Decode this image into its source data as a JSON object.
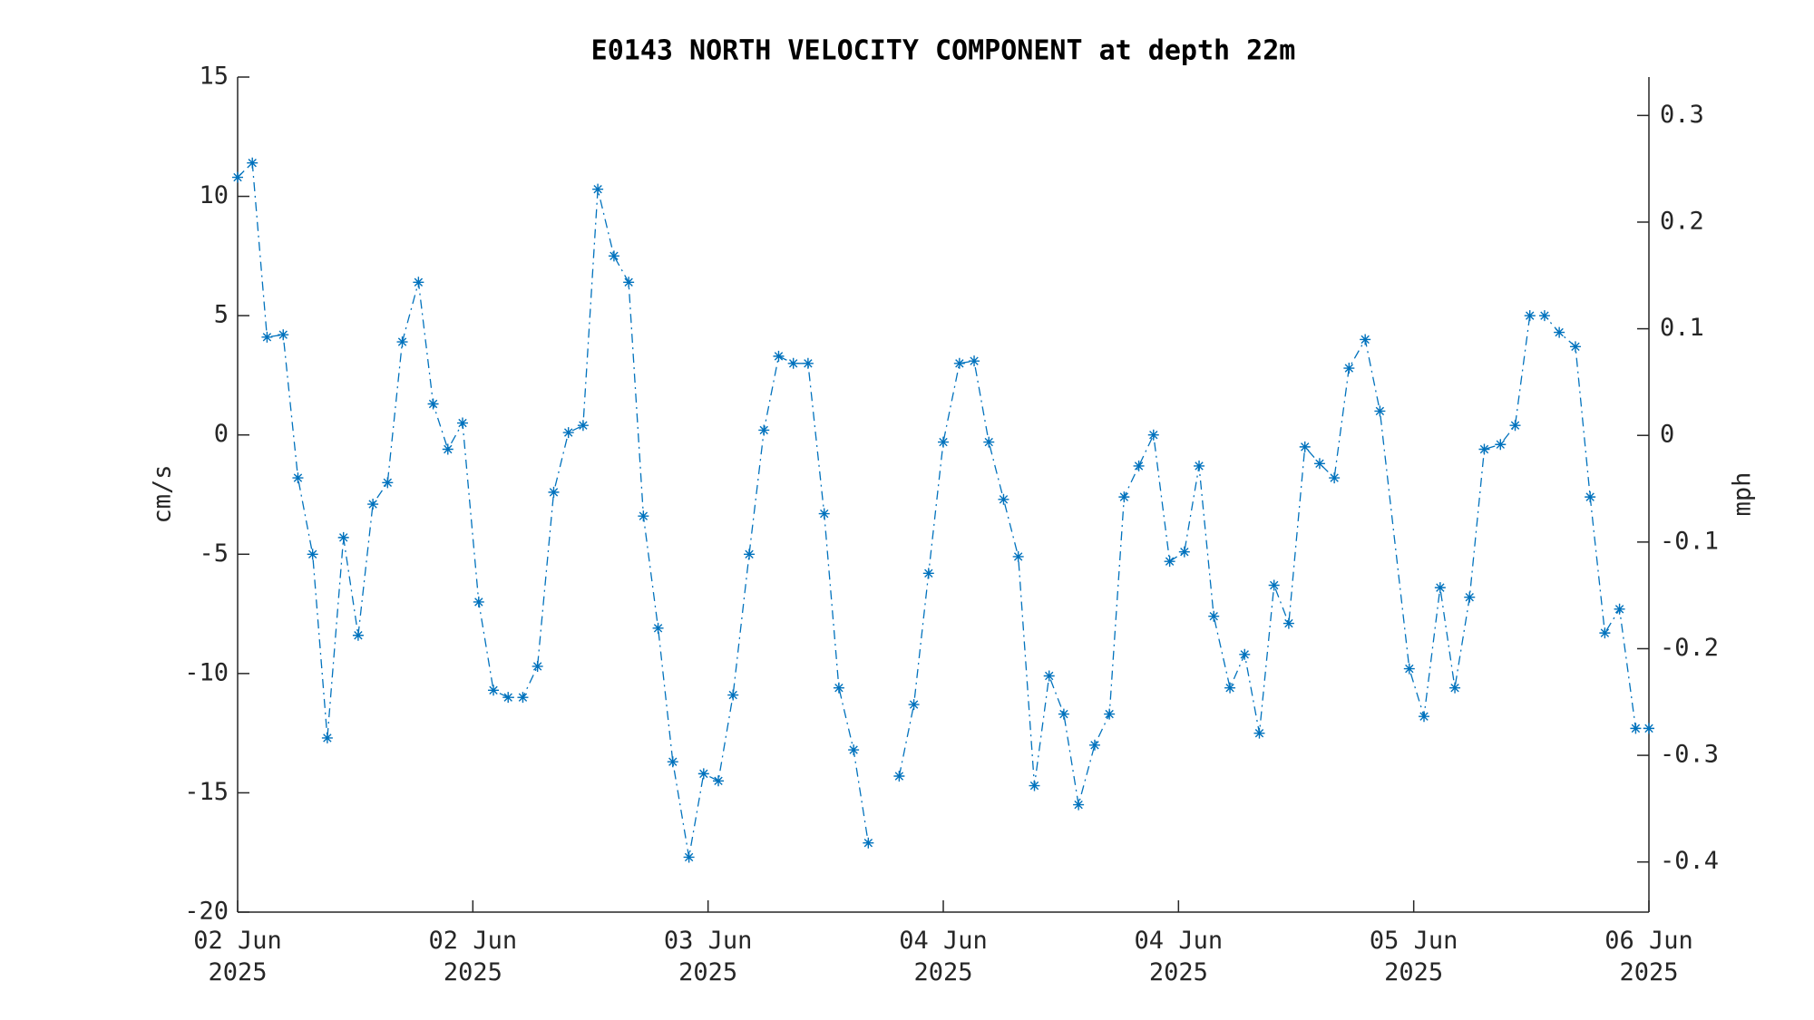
{
  "chart_data": {
    "type": "line",
    "title": "E0143 NORTH VELOCITY COMPONENT at depth 22m",
    "ylabel": "cm/s",
    "y2label": "mph",
    "x": [
      0,
      1.0,
      2.0,
      3.1,
      4.1,
      5.1,
      6.1,
      7.2,
      8.2,
      9.2,
      10.2,
      11.2,
      12.3,
      13.3,
      14.3,
      15.3,
      16.4,
      17.4,
      18.4,
      19.4,
      20.4,
      21.5,
      22.5,
      23.5,
      24.5,
      25.6,
      26.6,
      27.6,
      28.6,
      29.6,
      30.7,
      31.7,
      32.7,
      33.7,
      34.8,
      35.8,
      36.8,
      37.8,
      38.8,
      39.9,
      40.9,
      41.9,
      42.9,
      43.9,
      45.0,
      46.0,
      47.0,
      48.0,
      49.1,
      50.1,
      51.1,
      52.1,
      53.1,
      54.2,
      55.2,
      56.2,
      57.2,
      58.3,
      59.3,
      60.3,
      61.3,
      62.3,
      63.4,
      64.4,
      65.4,
      66.4,
      67.5,
      68.5,
      69.5,
      70.5,
      71.5,
      72.6,
      73.6,
      74.6,
      75.6,
      76.7,
      77.7,
      79.7,
      80.7,
      81.8,
      82.8,
      83.8,
      84.8,
      85.9,
      86.9,
      87.9,
      88.9,
      89.9,
      91.0,
      92.0,
      93.0,
      94.0,
      95.1,
      96.0
    ],
    "series": [
      {
        "name": "north velocity",
        "color": "#0072bd",
        "values": [
          10.8,
          11.4,
          4.1,
          4.2,
          -1.8,
          -5.0,
          -12.7,
          -4.3,
          -8.4,
          -2.9,
          -2.0,
          3.9,
          6.4,
          1.3,
          -0.6,
          0.5,
          -7.0,
          -10.7,
          -11.0,
          -11.0,
          -9.7,
          -2.4,
          0.1,
          0.4,
          10.3,
          7.5,
          6.4,
          -3.4,
          -8.1,
          -13.7,
          -17.7,
          -14.2,
          -14.5,
          -10.9,
          -5.0,
          0.2,
          3.3,
          3.0,
          3.0,
          -3.3,
          -10.6,
          -13.2,
          -17.1,
          null,
          -14.3,
          -11.3,
          -5.8,
          -0.3,
          3.0,
          3.1,
          -0.3,
          -2.7,
          -5.1,
          -14.7,
          -10.1,
          -11.7,
          -15.5,
          -13.0,
          -11.7,
          -2.6,
          -1.3,
          0.0,
          -5.3,
          -4.9,
          -1.3,
          -7.6,
          -10.6,
          -9.2,
          -12.5,
          -6.3,
          -7.9,
          -0.5,
          -1.2,
          -1.8,
          2.8,
          4.0,
          1.0,
          -9.8,
          -11.8,
          -6.4,
          -10.6,
          -6.8,
          -0.6,
          -0.4,
          0.4,
          5.0,
          5.0,
          4.3,
          3.7,
          -2.6,
          -8.3,
          -7.3,
          -12.3,
          -12.3
        ]
      }
    ],
    "xlim": [
      0,
      96
    ],
    "xticks": [
      {
        "value": 0,
        "label": "02 Jun\n2025"
      },
      {
        "value": 16,
        "label": "02 Jun\n2025"
      },
      {
        "value": 32,
        "label": "03 Jun\n2025"
      },
      {
        "value": 48,
        "label": "04 Jun\n2025"
      },
      {
        "value": 64,
        "label": "04 Jun\n2025"
      },
      {
        "value": 80,
        "label": "05 Jun\n2025"
      },
      {
        "value": 96,
        "label": "06 Jun\n2025"
      }
    ],
    "ylim": [
      -20,
      15
    ],
    "yticks": [
      -20,
      -15,
      -10,
      -5,
      0,
      5,
      10,
      15
    ],
    "y2lim": [
      -0.447,
      0.336
    ],
    "y2ticks": [
      -0.4,
      -0.3,
      -0.2,
      -0.1,
      0,
      0.1,
      0.2,
      0.3
    ],
    "grid": false,
    "marker": "asterisk",
    "linestyle": "dashdot"
  }
}
